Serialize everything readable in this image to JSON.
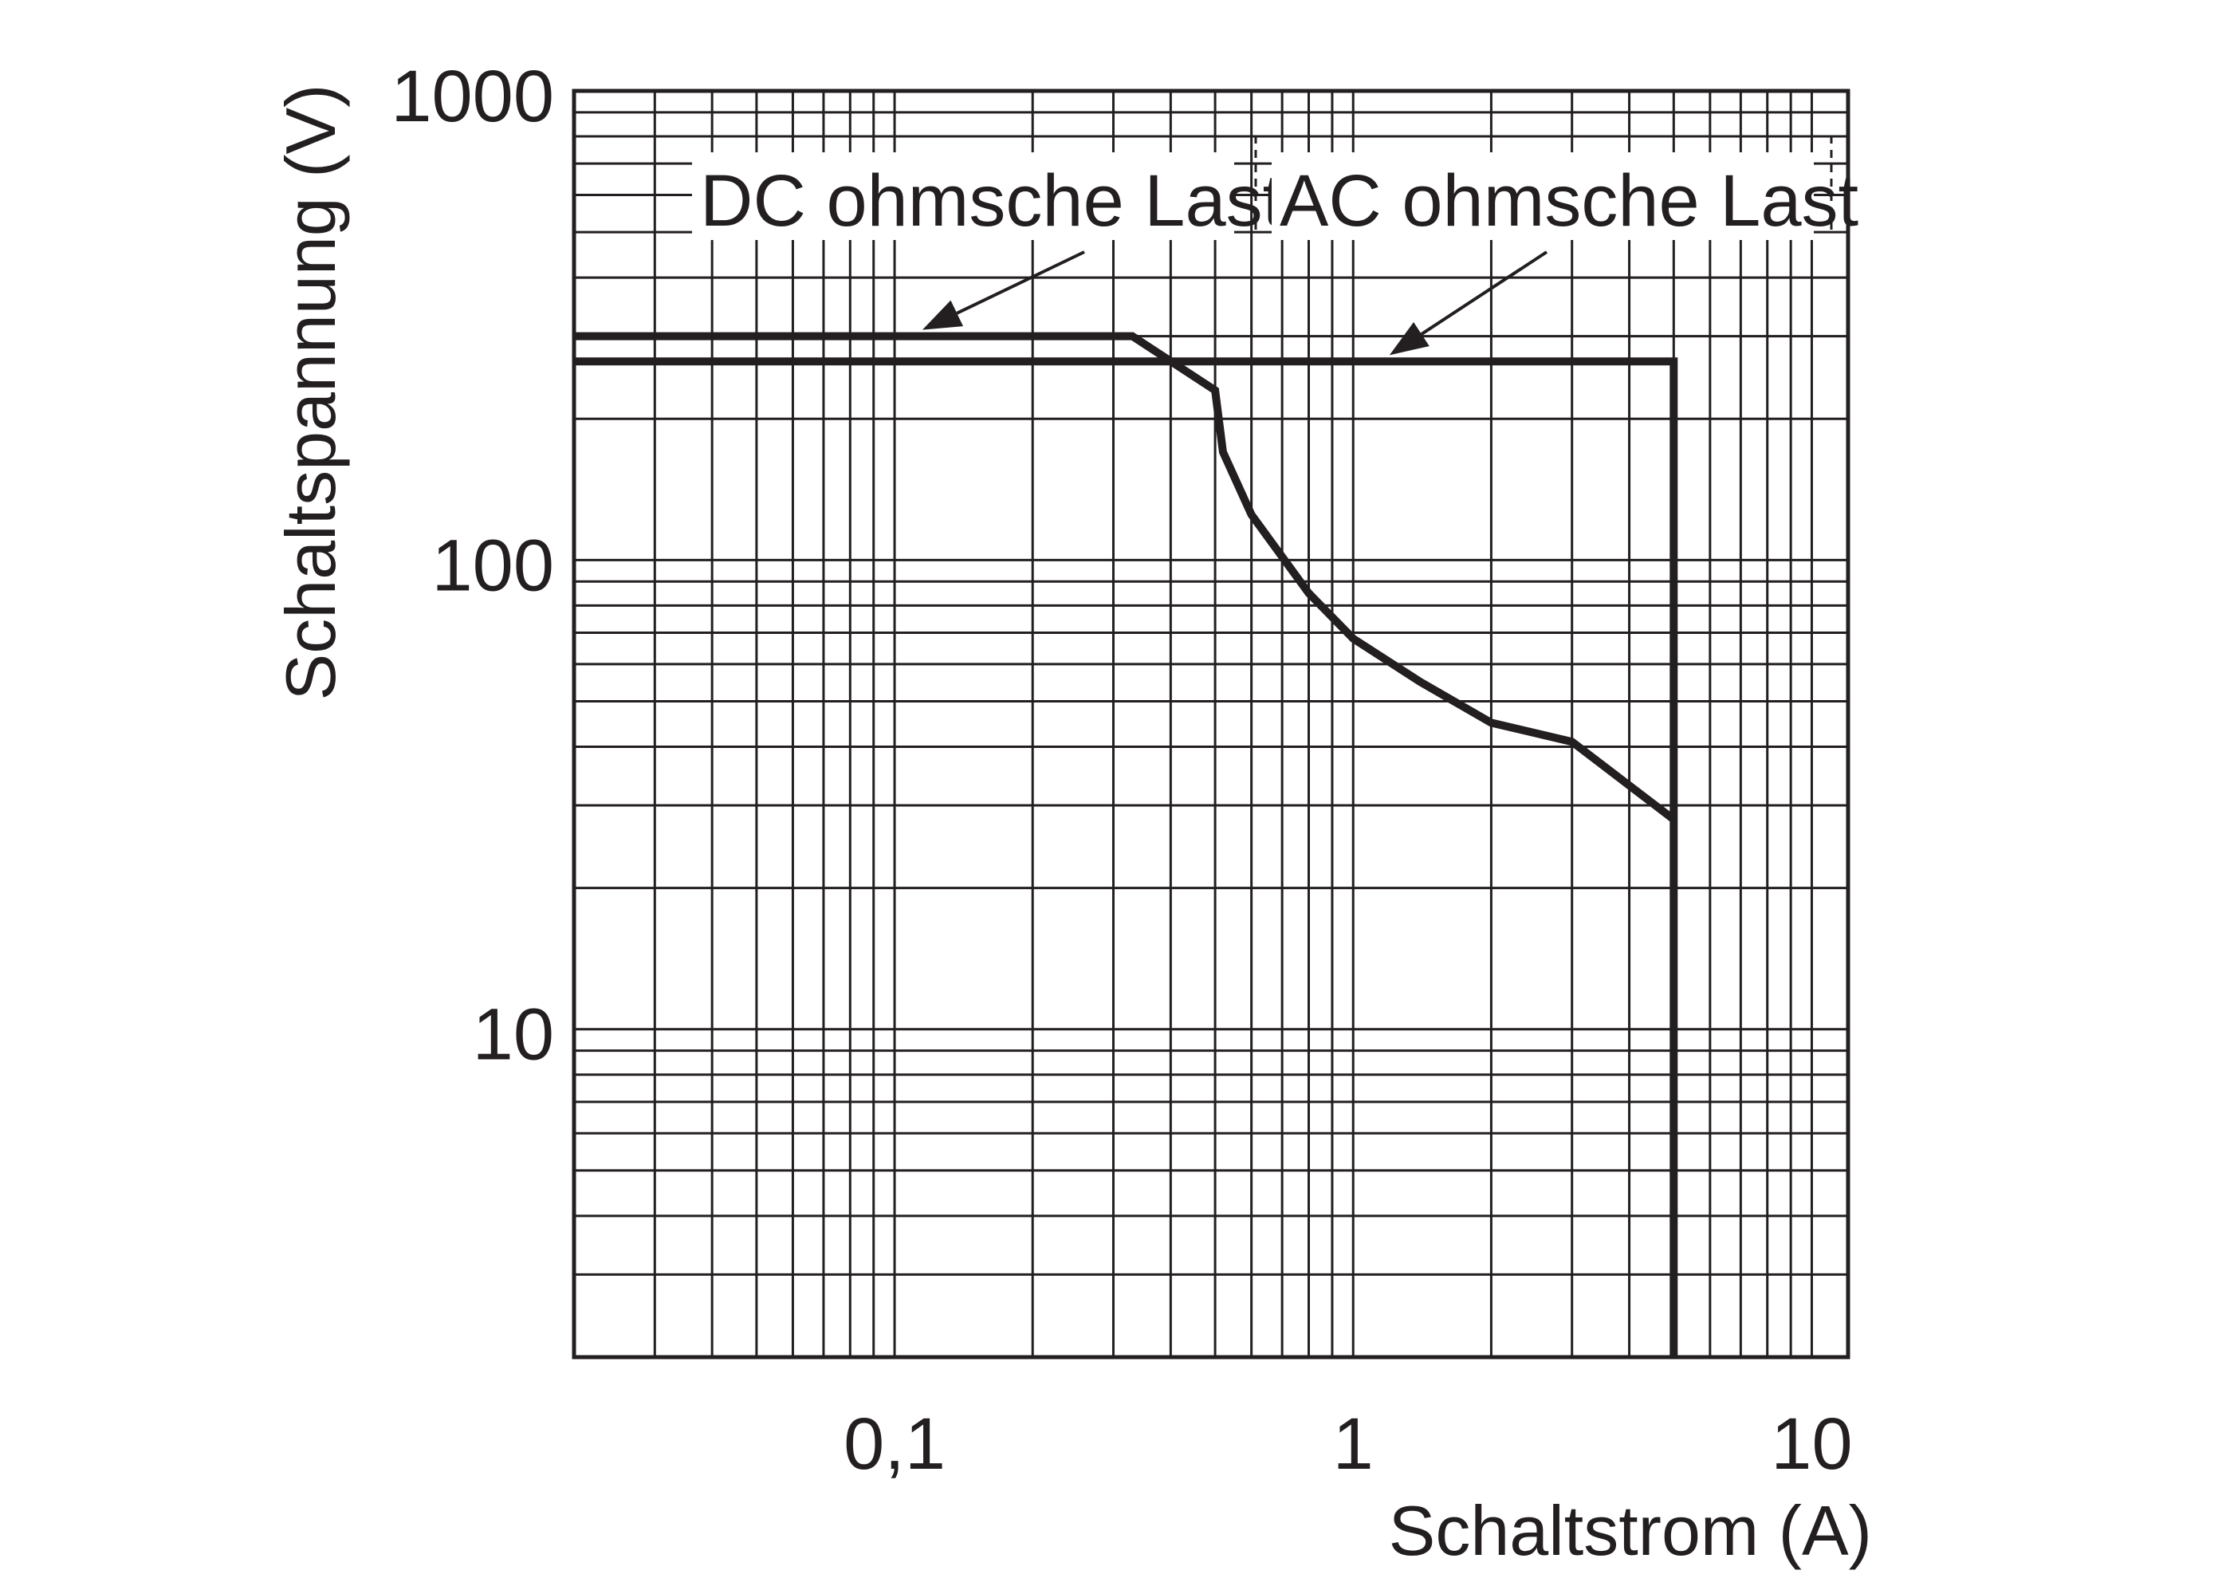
{
  "chart_data": {
    "type": "line",
    "xlabel": "Schaltstrom (A)",
    "ylabel": "Schaltspannung (V)",
    "x_scale": "log",
    "y_scale": "log",
    "xlim": [
      0.02,
      12
    ],
    "ylim": [
      2,
      1000
    ],
    "x_ticks": [
      {
        "value": 0.1,
        "label": "0,1"
      },
      {
        "value": 1,
        "label": "1"
      },
      {
        "value": 10,
        "label": "10"
      }
    ],
    "y_ticks": [
      {
        "value": 10,
        "label": "10"
      },
      {
        "value": 100,
        "label": "100"
      },
      {
        "value": 1000,
        "label": "1000"
      }
    ],
    "grid": true,
    "series": [
      {
        "name": "DC ohmsche Last",
        "color": "#231f20",
        "points": [
          [
            0.02,
            300
          ],
          [
            0.33,
            300
          ],
          [
            0.5,
            230
          ],
          [
            0.52,
            170
          ],
          [
            0.6,
            125
          ],
          [
            0.8,
            85
          ],
          [
            1.0,
            68
          ],
          [
            1.4,
            55
          ],
          [
            2.0,
            45
          ],
          [
            3.0,
            41
          ],
          [
            5.0,
            28
          ]
        ]
      },
      {
        "name": "AC ohmsche Last",
        "color": "#231f20",
        "points": [
          [
            0.02,
            265
          ],
          [
            5.0,
            265
          ],
          [
            5.0,
            2
          ]
        ]
      }
    ]
  }
}
